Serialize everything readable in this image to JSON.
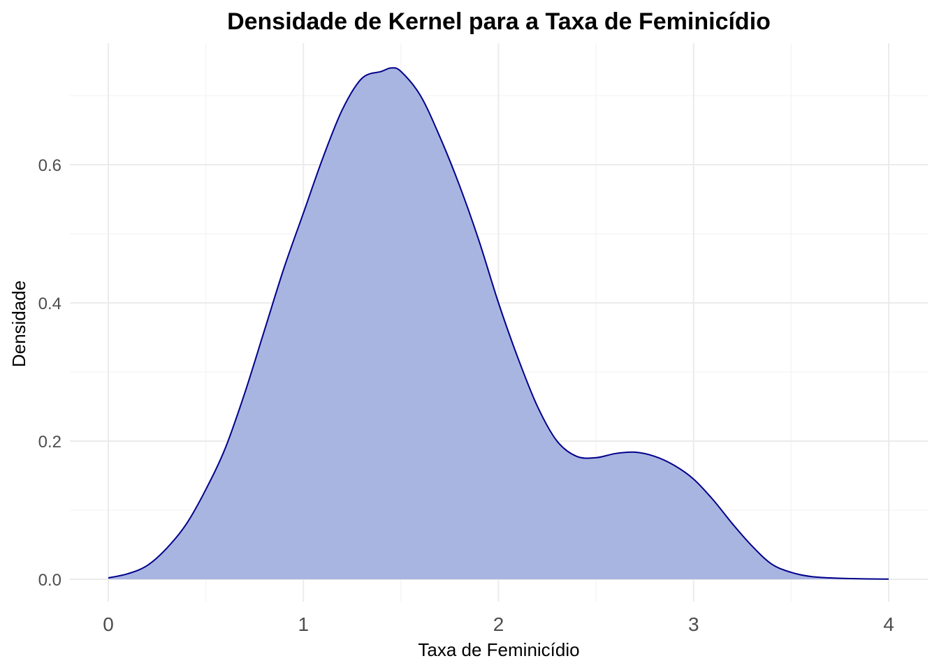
{
  "chart_data": {
    "type": "area",
    "title": "Densidade de Kernel para a Taxa de Feminicídio",
    "xlabel": "Taxa de Feminicídio",
    "ylabel": "Densidade",
    "xlim": [
      0,
      4
    ],
    "ylim": [
      0,
      0.74
    ],
    "x_ticks": [
      0,
      1,
      2,
      3,
      4
    ],
    "x_tick_labels": [
      "0",
      "1",
      "2",
      "3",
      "4"
    ],
    "y_ticks": [
      0.0,
      0.2,
      0.4,
      0.6
    ],
    "y_tick_labels": [
      "0.0",
      "0.2",
      "0.4",
      "0.6"
    ],
    "grid": true,
    "fill_color": "#a9b5e1",
    "line_color": "#00008b",
    "series": [
      {
        "x": [
          0,
          0.1,
          0.2,
          0.3,
          0.4,
          0.5,
          0.6,
          0.7,
          0.8,
          0.9,
          1.0,
          1.1,
          1.2,
          1.3,
          1.4,
          1.45,
          1.5,
          1.6,
          1.7,
          1.8,
          1.9,
          2.0,
          2.1,
          2.2,
          2.3,
          2.4,
          2.5,
          2.6,
          2.7,
          2.8,
          2.9,
          3.0,
          3.1,
          3.2,
          3.3,
          3.4,
          3.5,
          3.6,
          3.7,
          3.8,
          3.9,
          4.0
        ],
        "values": [
          0.002,
          0.008,
          0.02,
          0.045,
          0.08,
          0.13,
          0.19,
          0.27,
          0.36,
          0.45,
          0.53,
          0.61,
          0.68,
          0.725,
          0.735,
          0.74,
          0.735,
          0.7,
          0.64,
          0.57,
          0.49,
          0.4,
          0.32,
          0.25,
          0.2,
          0.178,
          0.176,
          0.182,
          0.184,
          0.178,
          0.165,
          0.145,
          0.115,
          0.08,
          0.048,
          0.022,
          0.01,
          0.004,
          0.002,
          0.001,
          0.0005,
          0.0002
        ]
      }
    ]
  }
}
